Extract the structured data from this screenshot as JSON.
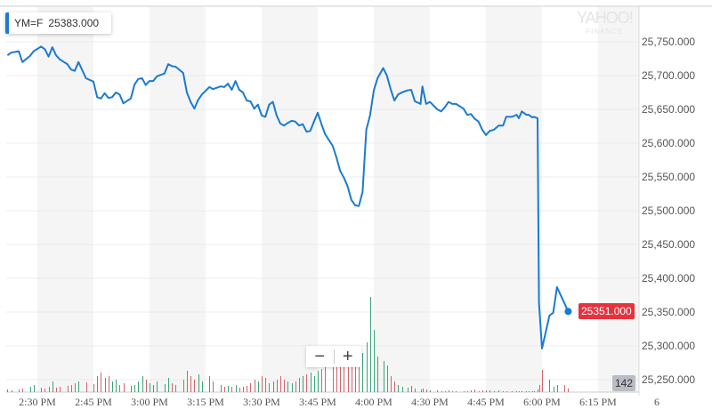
{
  "chart_data": {
    "type": "line",
    "symbol": "YM=F",
    "tooltip_value": "25383.000",
    "last_price_label": "25351.000",
    "volume_label": "142",
    "watermark": {
      "line1": "YAHOO!",
      "line2": "FINANCE"
    },
    "y_ticks": [
      "25,250.000",
      "25,300.000",
      "25,350.000",
      "25,400.000",
      "25,450.000",
      "25,500.000",
      "25,550.000",
      "25,600.000",
      "25,650.000",
      "25,700.000",
      "25,750.000"
    ],
    "y_tick_values": [
      25250,
      25300,
      25350,
      25400,
      25450,
      25500,
      25550,
      25600,
      25650,
      25700,
      25750
    ],
    "x_ticks": [
      "2:30 PM",
      "2:45 PM",
      "3:00 PM",
      "3:15 PM",
      "3:30 PM",
      "3:45 PM",
      "4:00 PM",
      "4:30 PM",
      "4:45 PM",
      "6:00 PM",
      "6:15 PM",
      "6"
    ],
    "ylim": [
      25235,
      25800
    ],
    "grid": true,
    "colors": {
      "line": "#1a7bd0",
      "up_volume": "#3aa57a",
      "down_volume": "#d4636b",
      "band": "#f5f5f5",
      "price_label": "#e8313c"
    },
    "points": [
      [
        "2:22 PM",
        25730,
        3
      ],
      [
        "2:23 PM",
        25734,
        2
      ],
      [
        "2:25 PM",
        25736,
        3
      ],
      [
        "2:26 PM",
        25720,
        4
      ],
      [
        "2:28 PM",
        25729,
        6
      ],
      [
        "2:29 PM",
        25736,
        8
      ],
      [
        "2:31 PM",
        25743,
        5
      ],
      [
        "2:32 PM",
        25739,
        4
      ],
      [
        "2:33 PM",
        25728,
        6
      ],
      [
        "2:34 PM",
        25742,
        12
      ],
      [
        "2:35 PM",
        25730,
        5
      ],
      [
        "2:36 PM",
        25724,
        6
      ],
      [
        "2:38 PM",
        25717,
        7
      ],
      [
        "2:39 PM",
        25709,
        8
      ],
      [
        "2:40 PM",
        25707,
        10
      ],
      [
        "2:41 PM",
        25720,
        12
      ],
      [
        "2:43 PM",
        25696,
        11
      ],
      [
        "2:45 PM",
        25691,
        9
      ],
      [
        "2:46 PM",
        25668,
        18
      ],
      [
        "2:47 PM",
        25666,
        22
      ],
      [
        "2:48 PM",
        25674,
        16
      ],
      [
        "2:49 PM",
        25667,
        18
      ],
      [
        "2:50 PM",
        25668,
        12
      ],
      [
        "2:51 PM",
        25675,
        14
      ],
      [
        "2:52 PM",
        25672,
        8
      ],
      [
        "2:53 PM",
        25659,
        10
      ],
      [
        "2:55 PM",
        25666,
        7
      ],
      [
        "2:56 PM",
        25687,
        8
      ],
      [
        "2:57 PM",
        25695,
        12
      ],
      [
        "2:58 PM",
        25696,
        18
      ],
      [
        "2:59 PM",
        25686,
        14
      ],
      [
        "3:00 PM",
        25692,
        10
      ],
      [
        "3:01 PM",
        25692,
        8
      ],
      [
        "3:02 PM",
        25699,
        12
      ],
      [
        "3:04 PM",
        25703,
        9
      ],
      [
        "3:05 PM",
        25717,
        16
      ],
      [
        "3:06 PM",
        25714,
        10
      ],
      [
        "3:07 PM",
        25713,
        8
      ],
      [
        "3:09 PM",
        25704,
        14
      ],
      [
        "3:10 PM",
        25675,
        24
      ],
      [
        "3:11 PM",
        25661,
        18
      ],
      [
        "3:12 PM",
        25651,
        14
      ],
      [
        "3:13 PM",
        25664,
        20
      ],
      [
        "3:14 PM",
        25672,
        12
      ],
      [
        "3:16 PM",
        25683,
        18
      ],
      [
        "3:17 PM",
        25680,
        12
      ],
      [
        "3:19 PM",
        25684,
        8
      ],
      [
        "3:20 PM",
        25683,
        6
      ],
      [
        "3:21 PM",
        25688,
        7
      ],
      [
        "3:22 PM",
        25679,
        6
      ],
      [
        "3:23 PM",
        25692,
        8
      ],
      [
        "3:24 PM",
        25679,
        5
      ],
      [
        "3:25 PM",
        25675,
        6
      ],
      [
        "3:26 PM",
        25663,
        7
      ],
      [
        "3:27 PM",
        25662,
        10
      ],
      [
        "3:28 PM",
        25651,
        14
      ],
      [
        "3:29 PM",
        25657,
        12
      ],
      [
        "3:30 PM",
        25641,
        18
      ],
      [
        "3:31 PM",
        25639,
        16
      ],
      [
        "3:32 PM",
        25657,
        10
      ],
      [
        "3:33 PM",
        25661,
        12
      ],
      [
        "3:34 PM",
        25641,
        14
      ],
      [
        "3:35 PM",
        25629,
        18
      ],
      [
        "3:36 PM",
        25626,
        14
      ],
      [
        "3:37 PM",
        25630,
        12
      ],
      [
        "3:38 PM",
        25633,
        10
      ],
      [
        "3:39 PM",
        25632,
        12
      ],
      [
        "3:40 PM",
        25626,
        16
      ],
      [
        "3:41 PM",
        25628,
        18
      ],
      [
        "3:42 PM",
        25617,
        20
      ],
      [
        "3:43 PM",
        25618,
        22
      ],
      [
        "3:44 PM",
        25632,
        18
      ],
      [
        "3:45 PM",
        25645,
        24
      ],
      [
        "3:46 PM",
        25628,
        26
      ],
      [
        "3:47 PM",
        25613,
        28
      ],
      [
        "3:49 PM",
        25596,
        30
      ],
      [
        "3:50 PM",
        25579,
        28
      ],
      [
        "3:51 PM",
        25559,
        30
      ],
      [
        "3:52 PM",
        25549,
        28
      ],
      [
        "3:53 PM",
        25536,
        30
      ],
      [
        "3:54 PM",
        25516,
        28
      ],
      [
        "3:55 PM",
        25508,
        32
      ],
      [
        "3:56 PM",
        25507,
        30
      ],
      [
        "3:57 PM",
        25528,
        44
      ],
      [
        "3:58 PM",
        25620,
        56
      ],
      [
        "3:59 PM",
        25641,
        107
      ],
      [
        "4:00 PM",
        25678,
        70
      ],
      [
        "4:02 PM",
        25696,
        40
      ],
      [
        "4:05 PM",
        25711,
        35
      ],
      [
        "4:07 PM",
        25700,
        30
      ],
      [
        "4:09 PM",
        25680,
        18
      ],
      [
        "4:11 PM",
        25663,
        12
      ],
      [
        "4:13 PM",
        25672,
        8
      ],
      [
        "4:15 PM",
        25675,
        6
      ],
      [
        "4:18 PM",
        25678,
        5
      ],
      [
        "4:20 PM",
        25679,
        7
      ],
      [
        "4:22 PM",
        25662,
        4
      ],
      [
        "4:25 PM",
        25658,
        3
      ],
      [
        "4:26 PM",
        25684,
        4
      ],
      [
        "4:28 PM",
        25658,
        3
      ],
      [
        "4:30 PM",
        25661,
        2
      ],
      [
        "4:32 PM",
        25650,
        2
      ],
      [
        "4:33 PM",
        25647,
        1
      ],
      [
        "4:34 PM",
        25653,
        1
      ],
      [
        "4:35 PM",
        25661,
        2
      ],
      [
        "4:36 PM",
        25658,
        1
      ],
      [
        "4:37 PM",
        25658,
        1
      ],
      [
        "4:39 PM",
        25651,
        1
      ],
      [
        "4:40 PM",
        25642,
        1
      ],
      [
        "4:41 PM",
        25643,
        2
      ],
      [
        "4:42 PM",
        25636,
        3
      ],
      [
        "4:43 PM",
        25632,
        1
      ],
      [
        "4:44 PM",
        25620,
        2
      ],
      [
        "4:45 PM",
        25612,
        2
      ],
      [
        "4:50 PM",
        25618,
        2
      ],
      [
        "4:56 PM",
        25620,
        1
      ],
      [
        "5:02 PM",
        25626,
        2
      ],
      [
        "5:08 PM",
        25626,
        1
      ],
      [
        "5:12 PM",
        25639,
        1
      ],
      [
        "5:20 PM",
        25639,
        1
      ],
      [
        "5:26 PM",
        25642,
        1
      ],
      [
        "5:29 PM",
        25637,
        1
      ],
      [
        "5:33 PM",
        25647,
        1
      ],
      [
        "5:39 PM",
        25642,
        1
      ],
      [
        "5:42 PM",
        25642,
        1
      ],
      [
        "5:47 PM",
        25638,
        1
      ],
      [
        "5:49 PM",
        25639,
        1
      ],
      [
        "5:54 PM",
        25637,
        3
      ],
      [
        "5:56 PM",
        25364,
        8
      ],
      [
        "6:00 PM",
        25296,
        25
      ],
      [
        "6:02 PM",
        25345,
        14
      ],
      [
        "6:03 PM",
        25349,
        6
      ],
      [
        "6:04 PM",
        25387,
        8
      ],
      [
        "6:06 PM",
        25363,
        8
      ],
      [
        "6:07 PM",
        25351,
        4
      ]
    ]
  },
  "zoom_controls": {
    "minus": "−",
    "plus": "+"
  }
}
